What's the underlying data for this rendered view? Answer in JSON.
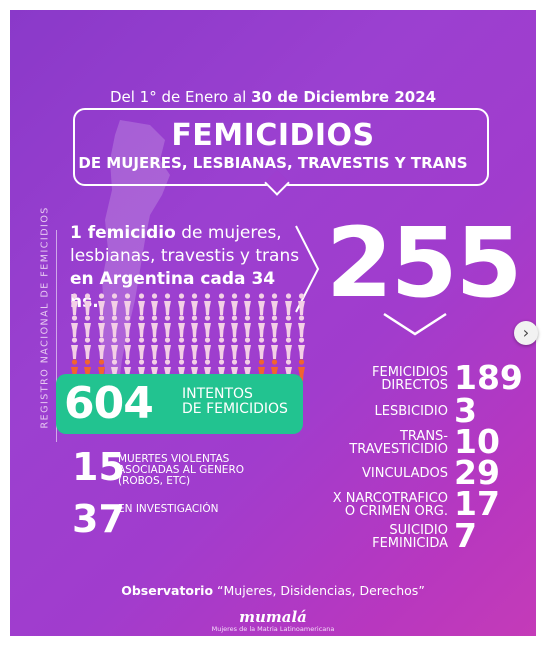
{
  "header": {
    "date_prefix": "Del 1° de Enero al",
    "date_bold": "30 de Diciembre 2024",
    "title": "FEMICIDIOS",
    "subtitle": "DE MUJERES, LESBIANAS, TRAVESTIS Y TRANS"
  },
  "side_label": "REGISTRO NACIONAL  DE FEMICIDIOS",
  "rate": {
    "bold_start": "1 femicidio",
    "middle": "de mujeres, lesbianas, travestis y trans",
    "bold_end": "en Argentina cada 34 hs."
  },
  "total": "255",
  "intentos": {
    "number": "604",
    "label_line1": "INTENTOS",
    "label_line2": "DE FEMICIDIOS"
  },
  "muertes": {
    "number": "15",
    "label_line1": "MUERTES VIOLENTAS",
    "label_line2": "ASOCIADAS AL GENERO",
    "label_line3": "(ROBOS, ETC)"
  },
  "investigacion": {
    "number": "37",
    "label": "EN INVESTIGACIÓN"
  },
  "stats": [
    {
      "line1": "FEMICIDIOS",
      "line2": "DIRECTOS",
      "value": "189"
    },
    {
      "line1": "LESBICIDIO",
      "line2": "",
      "value": "3"
    },
    {
      "line1": "TRANS-",
      "line2": "TRAVESTICIDIO",
      "value": "10"
    },
    {
      "line1": "VINCULADOS",
      "line2": "",
      "value": "29"
    },
    {
      "line1": "X NARCOTRAFICO",
      "line2": "O CRIMEN ORG.",
      "value": "17"
    },
    {
      "line1": "SUICIDIO",
      "line2": "FEMINICIDA",
      "value": "7"
    }
  ],
  "footer": {
    "bold": "Observatorio",
    "quote": "“Mujeres, Disidencias, Derechos”"
  },
  "logo": {
    "name": "mumalá",
    "tagline": "Mujeres de la Matria Latinoamericana"
  },
  "colors": {
    "accent_green": "#22c390",
    "figure_orange": "#f1642f",
    "figure_light": "#f3cfe6"
  },
  "icons": {
    "next": "chevron-right-icon"
  }
}
